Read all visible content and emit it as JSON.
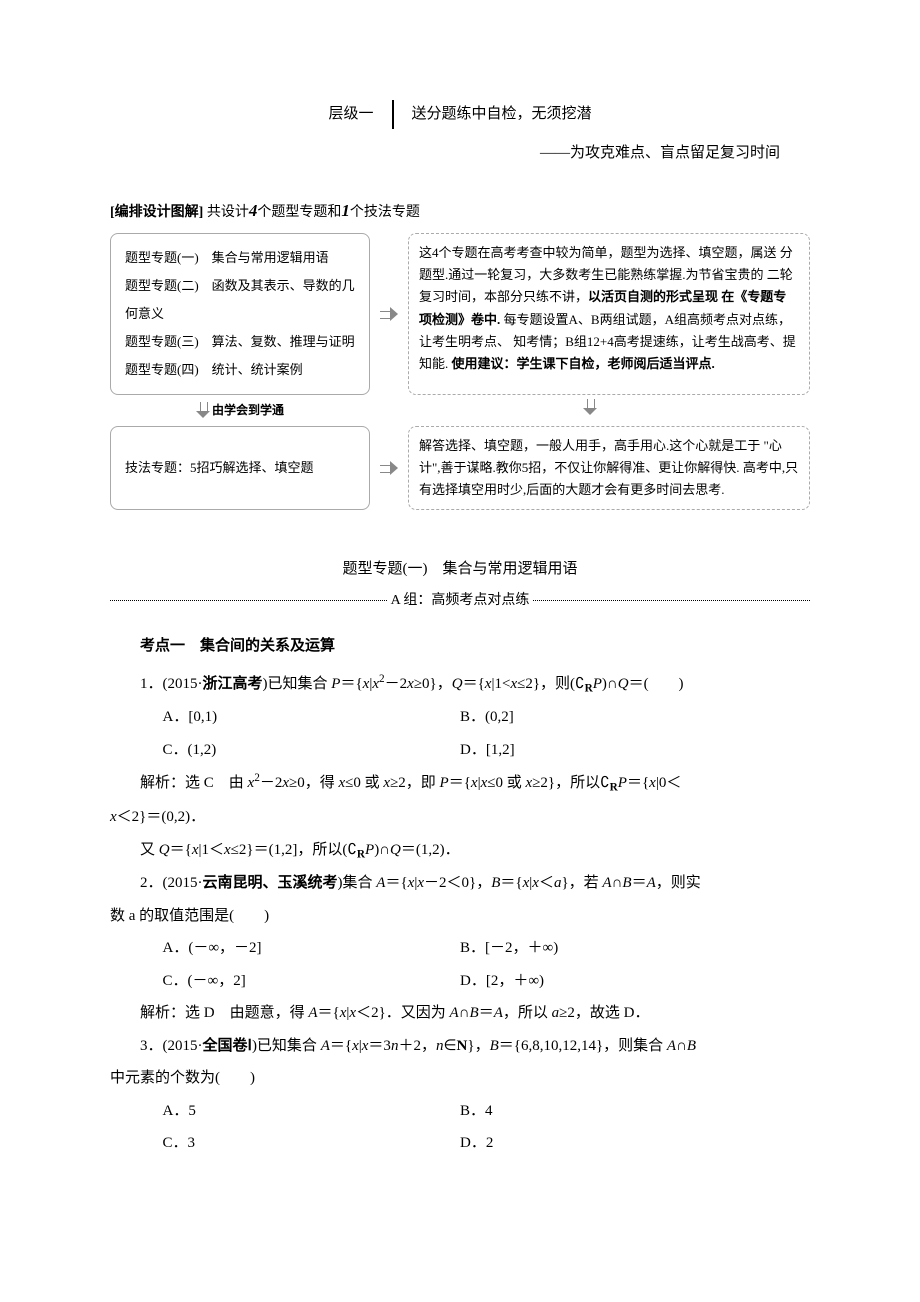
{
  "header": {
    "layer": "层级一",
    "slogan": "送分题练中自检，无须挖潜",
    "sub": "——为攻克难点、盲点留足复习时间"
  },
  "design": {
    "title_prefix": "[编排设计图解]",
    "title_rest_a": "共设计",
    "title_num1": "4",
    "title_mid": "个题型专题和",
    "title_num2": "1",
    "title_rest_b": "个技法专题",
    "left_topics": [
      "题型专题(一)　集合与常用逻辑用语",
      "题型专题(二)　函数及其表示、导数的几何意义",
      "题型专题(三)　算法、复数、推理与证明",
      "题型专题(四)　统计、统计案例"
    ],
    "right_top_lines": [
      "这4个专题在高考考查中较为简单，题型为选择、填空题，属送",
      "分题型.通过一轮复习，大多数考生已能熟练掌握.为节省宝贵的",
      "二轮复习时间，本部分只练不讲，",
      "以活页自测的形式呈现",
      "在《专题专项检测》卷中.",
      "每专题设置A、B两组试题，A组高频考点对点练，让考生明考点、",
      "知考情；B组12+4高考提速练，让考生战高考、提知能.",
      "使用建议：学生课下自检，老师阅后适当评点."
    ],
    "transition": "由学会到学通",
    "left_bottom": "技法专题：5招巧解选择、填空题",
    "right_bottom_lines": [
      "解答选择、填空题，一般人用手，高手用心.这个心就是工于",
      "\"心计\",善于谋略.教你5招，不仅让你解得准、更让你解得快.",
      "高考中,只有选择填空用时少,后面的大题才会有更多时间去思考."
    ]
  },
  "topic": {
    "title": "题型专题(一)　集合与常用逻辑用语",
    "group_label": "A 组：高频考点对点练"
  },
  "kd1": {
    "title": "考点一　集合间的关系及运算",
    "q1": {
      "stem_a": "1．(2015·",
      "stem_src": "浙江高考",
      "opts": {
        "A": "A．[0,1)",
        "B": "B．(0,2]",
        "C": "C．(1,2)",
        "D": "D．[1,2]"
      }
    },
    "q2": {
      "stem_a": "2．(2015·",
      "stem_src": "云南昆明、玉溪统考",
      "tail": "数 a 的取值范围是(　　)",
      "opts": {
        "A": "A．(－∞，－2]",
        "B": "B．[－2，＋∞)",
        "C": "C．(－∞，2]",
        "D": "D．[2，＋∞)"
      }
    },
    "q3": {
      "stem_a": "3．(2015·",
      "stem_src": "全国卷Ⅰ",
      "tail": "中元素的个数为(　　)",
      "opts": {
        "A": "A．5",
        "B": "B．4",
        "C": "C．3",
        "D": "D．2"
      }
    }
  }
}
